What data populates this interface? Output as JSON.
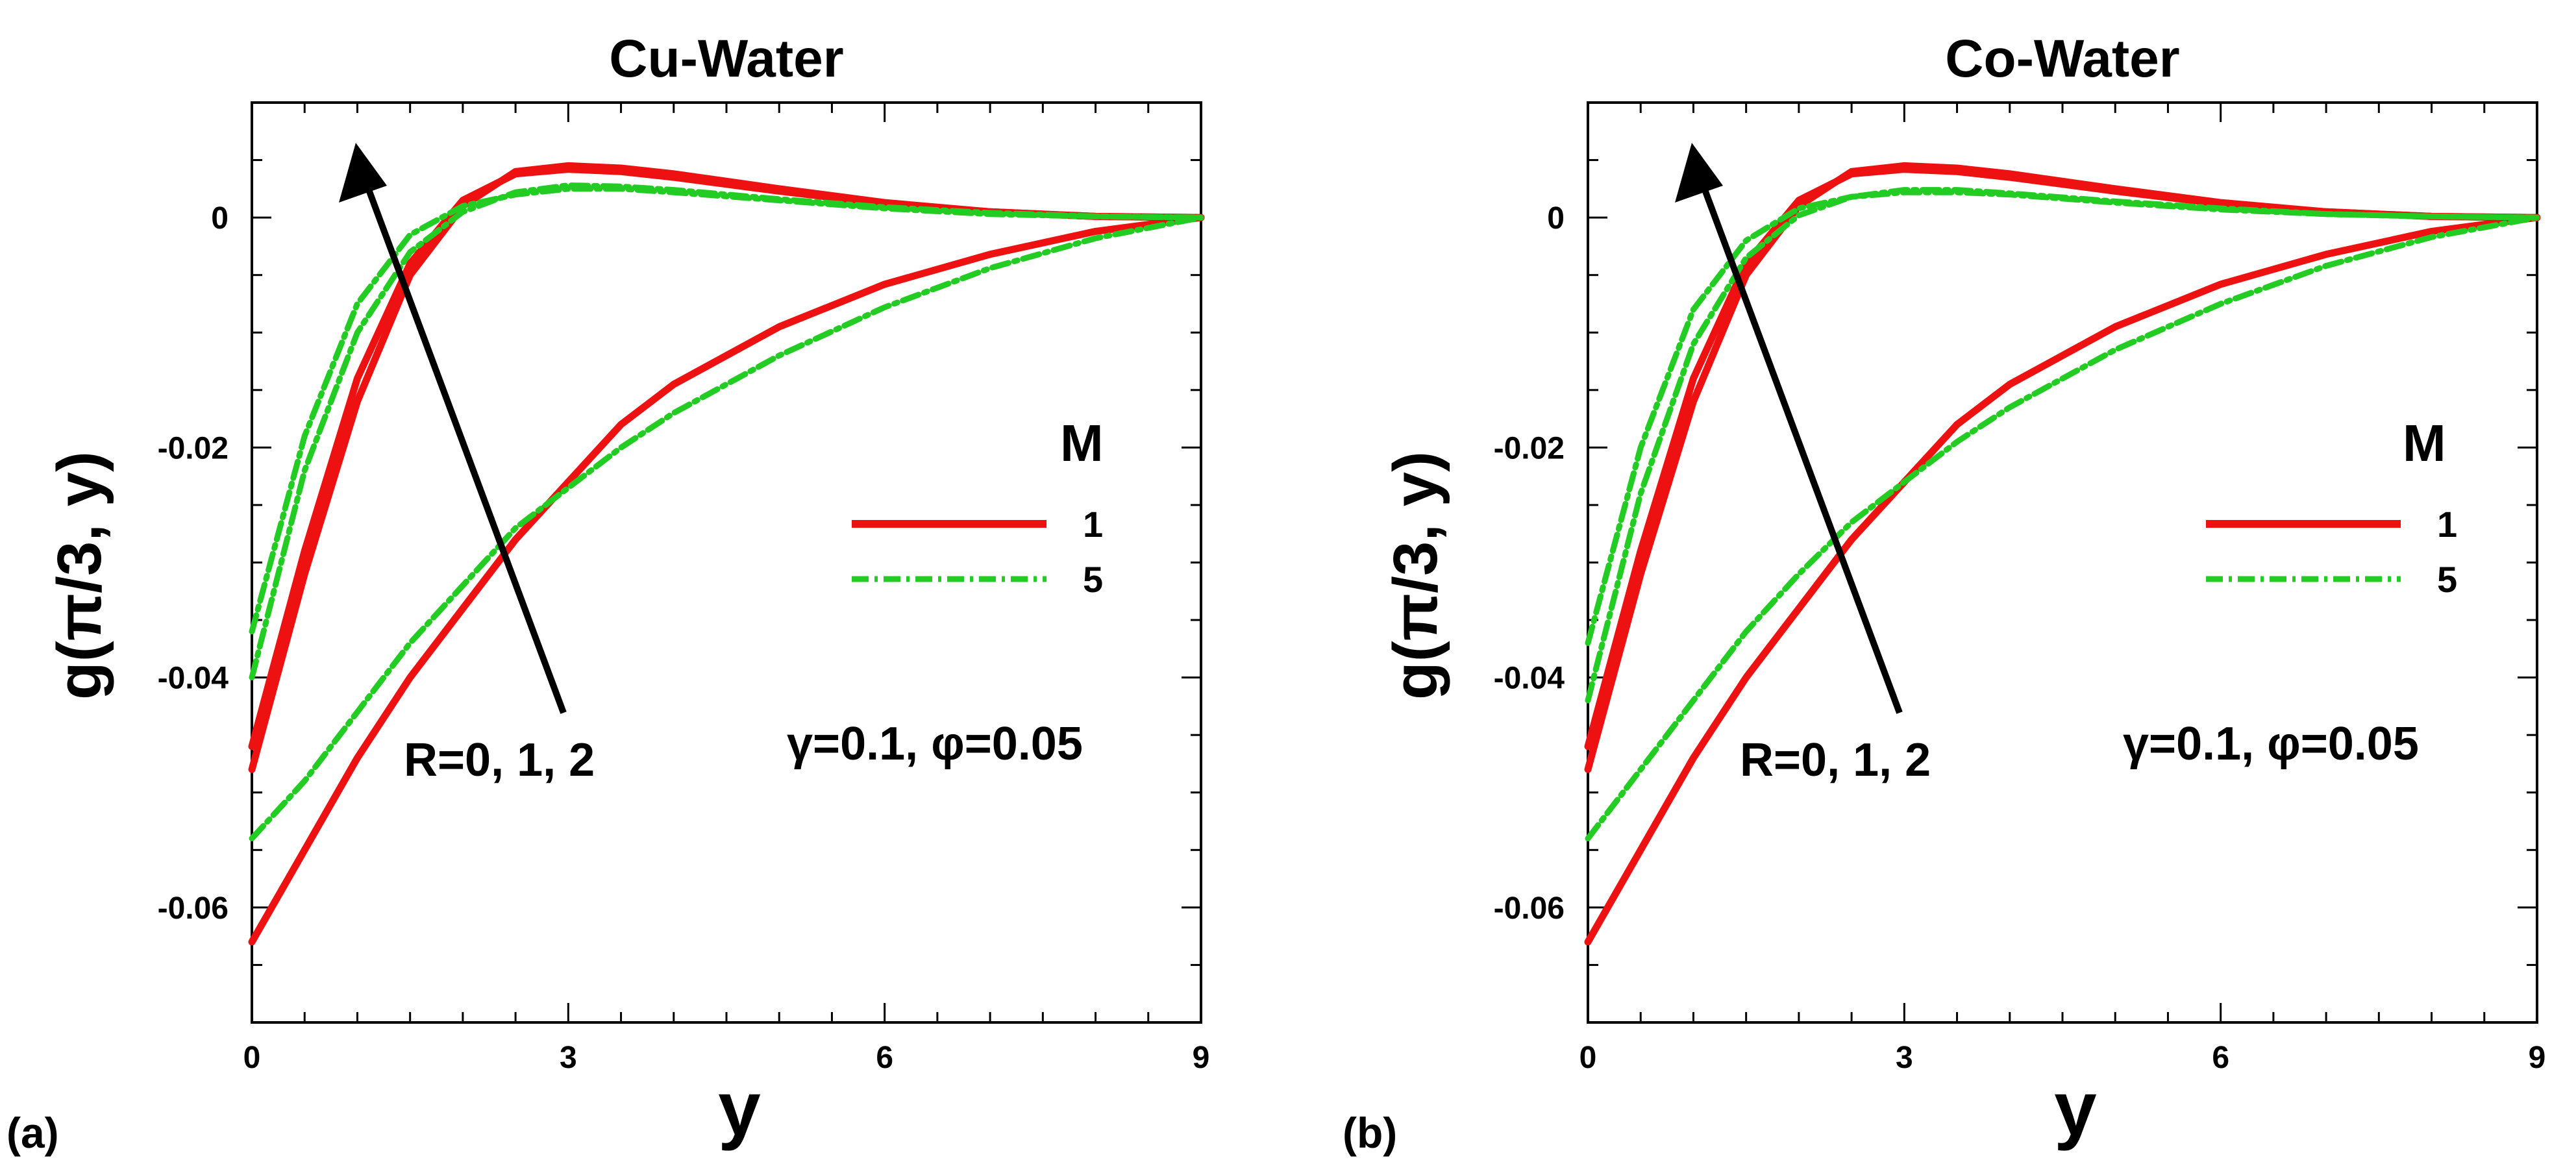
{
  "colors": {
    "m1": "#ee1111",
    "m5": "#22cc22",
    "axis": "#000000",
    "arrow": "#000000"
  },
  "chart_data": [
    {
      "panel_label": "(a)",
      "type": "line",
      "title": "Cu-Water",
      "xlabel": "y",
      "ylabel": "g(π/3, y)",
      "xlim": [
        0,
        9
      ],
      "ylim": [
        -0.07,
        0.01
      ],
      "xticks": [
        "0",
        "3",
        "6",
        "9"
      ],
      "yticks": [
        "0",
        "-0.02",
        "-0.04",
        "-0.06"
      ],
      "legend": {
        "title": "M",
        "entries": [
          "1",
          "5"
        ],
        "placement": "right"
      },
      "annotations": {
        "arrow_label": "R=0, 1, 2",
        "params": "γ=0.1, φ=0.05"
      },
      "series": [
        {
          "name": "M=1, R=0",
          "group": "m1",
          "x": [
            0,
            0.5,
            1,
            1.5,
            2,
            2.5,
            3,
            3.5,
            4,
            5,
            6,
            7,
            8,
            9
          ],
          "y": [
            -0.063,
            -0.055,
            -0.047,
            -0.04,
            -0.034,
            -0.028,
            -0.023,
            -0.018,
            -0.0145,
            -0.0095,
            -0.0058,
            -0.0032,
            -0.0012,
            0
          ]
        },
        {
          "name": "M=1, R=1",
          "group": "m1",
          "x": [
            0,
            0.5,
            1,
            1.5,
            2,
            2.5,
            3,
            3.5,
            4,
            5,
            6,
            7,
            8,
            9
          ],
          "y": [
            -0.048,
            -0.031,
            -0.016,
            -0.005,
            0.001,
            0.004,
            0.0045,
            0.0043,
            0.0038,
            0.0025,
            0.0013,
            0.0005,
            0.0001,
            0
          ]
        },
        {
          "name": "M=1, R=2",
          "group": "m1",
          "x": [
            0,
            0.5,
            1,
            1.5,
            2,
            2.5,
            3,
            3.5,
            4,
            5,
            6,
            7,
            8,
            9
          ],
          "y": [
            -0.046,
            -0.029,
            -0.014,
            -0.004,
            0.0015,
            0.0038,
            0.0042,
            0.004,
            0.0035,
            0.0023,
            0.0012,
            0.0005,
            0.0001,
            0
          ]
        },
        {
          "name": "M=5, R=0",
          "group": "m5",
          "x": [
            0,
            0.5,
            1,
            1.5,
            2,
            2.5,
            3,
            3.5,
            4,
            5,
            6,
            7,
            8,
            9
          ],
          "y": [
            -0.054,
            -0.049,
            -0.043,
            -0.037,
            -0.032,
            -0.027,
            -0.0235,
            -0.02,
            -0.017,
            -0.012,
            -0.0078,
            -0.0044,
            -0.0018,
            0
          ]
        },
        {
          "name": "M=5, R=1",
          "group": "m5",
          "x": [
            0,
            0.5,
            1,
            1.5,
            2,
            2.5,
            3,
            3.5,
            4,
            5,
            6,
            7,
            8,
            9
          ],
          "y": [
            -0.04,
            -0.022,
            -0.01,
            -0.003,
            0.0005,
            0.0022,
            0.0028,
            0.0027,
            0.0024,
            0.0016,
            0.0009,
            0.0004,
            0.0001,
            0
          ]
        },
        {
          "name": "M=5, R=2",
          "group": "m5",
          "x": [
            0,
            0.5,
            1,
            1.5,
            2,
            2.5,
            3,
            3.5,
            4,
            5,
            6,
            7,
            8,
            9
          ],
          "y": [
            -0.036,
            -0.019,
            -0.0075,
            -0.0015,
            0.001,
            0.002,
            0.0025,
            0.0025,
            0.0022,
            0.0015,
            0.0008,
            0.0003,
            0.0001,
            0
          ]
        }
      ]
    },
    {
      "panel_label": "(b)",
      "type": "line",
      "title": "Co-Water",
      "xlabel": "y",
      "ylabel": "g(π/3, y)",
      "xlim": [
        0,
        9
      ],
      "ylim": [
        -0.07,
        0.01
      ],
      "xticks": [
        "0",
        "3",
        "6",
        "9"
      ],
      "yticks": [
        "0",
        "-0.02",
        "-0.04",
        "-0.06"
      ],
      "legend": {
        "title": "M",
        "entries": [
          "1",
          "5"
        ],
        "placement": "right"
      },
      "annotations": {
        "arrow_label": "R=0, 1, 2",
        "params": "γ=0.1, φ=0.05"
      },
      "series": [
        {
          "name": "M=1, R=0",
          "group": "m1",
          "x": [
            0,
            0.5,
            1,
            1.5,
            2,
            2.5,
            3,
            3.5,
            4,
            5,
            6,
            7,
            8,
            9
          ],
          "y": [
            -0.063,
            -0.055,
            -0.047,
            -0.04,
            -0.034,
            -0.028,
            -0.023,
            -0.018,
            -0.0145,
            -0.0095,
            -0.0058,
            -0.0032,
            -0.0012,
            0
          ]
        },
        {
          "name": "M=1, R=1",
          "group": "m1",
          "x": [
            0,
            0.5,
            1,
            1.5,
            2,
            2.5,
            3,
            3.5,
            4,
            5,
            6,
            7,
            8,
            9
          ],
          "y": [
            -0.048,
            -0.031,
            -0.016,
            -0.005,
            0.001,
            0.004,
            0.0045,
            0.0043,
            0.0038,
            0.0025,
            0.0013,
            0.0005,
            0.0001,
            0
          ]
        },
        {
          "name": "M=1, R=2",
          "group": "m1",
          "x": [
            0,
            0.5,
            1,
            1.5,
            2,
            2.5,
            3,
            3.5,
            4,
            5,
            6,
            7,
            8,
            9
          ],
          "y": [
            -0.046,
            -0.029,
            -0.014,
            -0.004,
            0.0015,
            0.0038,
            0.0042,
            0.004,
            0.0035,
            0.0023,
            0.0012,
            0.0005,
            0.0001,
            0
          ]
        },
        {
          "name": "M=5, R=0",
          "group": "m5",
          "x": [
            0,
            0.5,
            1,
            1.5,
            2,
            2.5,
            3,
            3.5,
            4,
            5,
            6,
            7,
            8,
            9
          ],
          "y": [
            -0.054,
            -0.048,
            -0.042,
            -0.036,
            -0.031,
            -0.0265,
            -0.023,
            -0.0195,
            -0.0165,
            -0.0115,
            -0.0075,
            -0.0042,
            -0.0017,
            0
          ]
        },
        {
          "name": "M=5, R=1",
          "group": "m5",
          "x": [
            0,
            0.5,
            1,
            1.5,
            2,
            2.5,
            3,
            3.5,
            4,
            5,
            6,
            7,
            8,
            9
          ],
          "y": [
            -0.042,
            -0.024,
            -0.011,
            -0.0035,
            0.0002,
            0.0018,
            0.0024,
            0.0024,
            0.0021,
            0.0014,
            0.0008,
            0.0003,
            0.0001,
            0
          ]
        },
        {
          "name": "M=5, R=2",
          "group": "m5",
          "x": [
            0,
            0.5,
            1,
            1.5,
            2,
            2.5,
            3,
            3.5,
            4,
            5,
            6,
            7,
            8,
            9
          ],
          "y": [
            -0.037,
            -0.02,
            -0.008,
            -0.002,
            0.0008,
            0.0018,
            0.0022,
            0.0022,
            0.002,
            0.0013,
            0.0007,
            0.0003,
            0.0001,
            0
          ]
        }
      ]
    }
  ]
}
